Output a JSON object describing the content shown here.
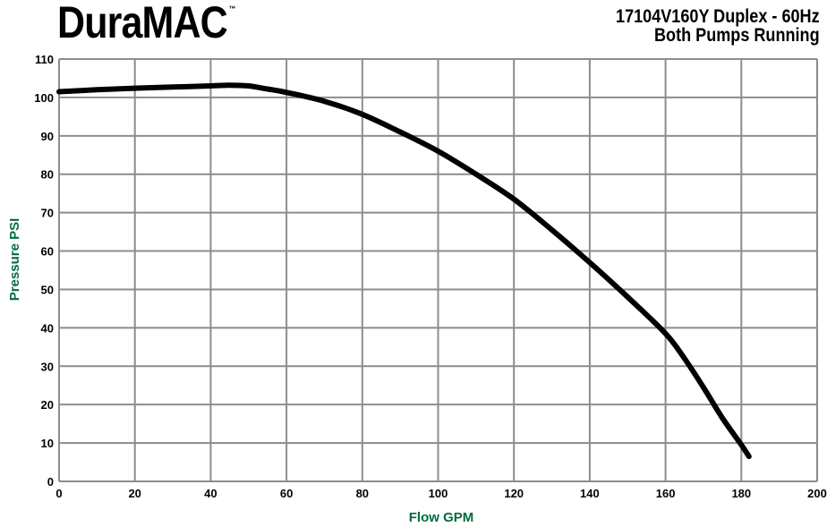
{
  "header": {
    "logo_text": "DuraMAC",
    "logo_mark": "™",
    "title_line1": "17104V160Y Duplex - 60Hz",
    "title_line2": "Both Pumps Running"
  },
  "colors": {
    "curve": "#000000",
    "grid": "#8c8c8c",
    "axis_label": "#006b3e"
  },
  "chart_data": {
    "type": "line",
    "xlabel": "Flow GPM",
    "ylabel": "Pressure PSI",
    "xlim": [
      0,
      200
    ],
    "ylim": [
      0,
      110
    ],
    "x_ticks": [
      0,
      20,
      40,
      60,
      80,
      100,
      120,
      140,
      160,
      180,
      200
    ],
    "y_ticks": [
      0,
      10,
      20,
      30,
      40,
      50,
      60,
      70,
      80,
      90,
      100,
      110
    ],
    "grid": true,
    "series": [
      {
        "x": [
          0,
          10,
          20,
          30,
          40,
          45,
          50,
          55,
          60,
          70,
          80,
          90,
          100,
          110,
          120,
          130,
          140,
          150,
          160,
          165,
          170,
          175,
          180,
          182
        ],
        "y": [
          101.5,
          102,
          102.4,
          102.7,
          103,
          103.2,
          103,
          102.2,
          101.3,
          99,
          95.6,
          91,
          86,
          80,
          73.5,
          65.5,
          57,
          48,
          38.5,
          32,
          24.5,
          16.5,
          9.5,
          6.5
        ]
      }
    ]
  }
}
